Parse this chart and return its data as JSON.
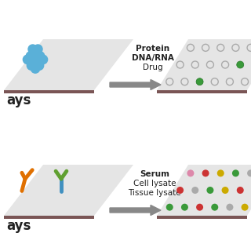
{
  "bg_color": "#ffffff",
  "panel1": {
    "slide_top_color": "#e5e5e5",
    "slide_edge_color": "#7a5555",
    "blob_color": "#5ab0d8",
    "label_lines": [
      "Protein",
      "DNA/RNA",
      "Drug"
    ],
    "label_bold": [
      true,
      true,
      false
    ],
    "spots_empty_edgecolor": "#aaaaaa",
    "spots_filled_color": "#3a9a3a",
    "green_indices": [
      2,
      10
    ]
  },
  "panel2": {
    "slide_top_color": "#e5e5e5",
    "slide_edge_color": "#7a5555",
    "antibody1_color": "#e07000",
    "antibody2_stem": "#4090c0",
    "antibody2_arms": "#60a030",
    "label_lines": [
      "Serum",
      "Cell lysate",
      "Tissue lysate"
    ],
    "spot_colors": [
      "#3a9a3a",
      "#3a9a3a",
      "#cc3333",
      "#3a9a3a",
      "#aaaaaa",
      "#ccaa00",
      "#cc3333",
      "#aaaaaa",
      "#3a9a3a",
      "#ccaa00",
      "#cc3333",
      "#3a9a3a",
      "#dd88aa",
      "#cc3333",
      "#ccaa00",
      "#3a9a3a",
      "#aaaaaa",
      "#ccaa00"
    ]
  },
  "arrow_color": "#888888",
  "text_color": "#222222",
  "label_text": "ays",
  "label_fontsize": 12,
  "text_fontsize": 7.5
}
